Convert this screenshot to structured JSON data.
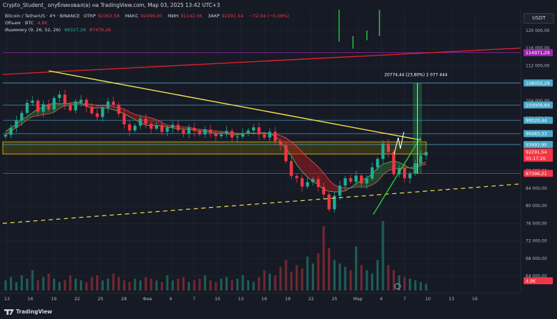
{
  "header": {
    "publisher": "Crypto_Student_ опубликовал(а) на TradingView.com, Мар 03, 2025 13:42 UTC+3"
  },
  "legend": {
    "symbol": "Bitcoin / TetherUS · 4Ч · BINANCE",
    "ohlc": [
      {
        "label": "ОТКР",
        "value": "92363,58"
      },
      {
        "label": "МАКС",
        "value": "92499,00"
      },
      {
        "label": "МИН",
        "value": "91142,06"
      },
      {
        "label": "ЗАКР",
        "value": "92291,54"
      }
    ],
    "change": "−72,04 (−0,08%)",
    "volume_label": "Объем · BTC",
    "volume_value": "4,9K",
    "ichimoku_label": "Ишимоку (9, 26, 52, 26)",
    "ichimoku_a": "88327,28",
    "ichimoku_b": "87479,26"
  },
  "currency": "USDT",
  "measure_label": "20774,44 (23,80%) 2 077 444",
  "brand": "TradingView",
  "colors": {
    "background": "#161a25",
    "up": "#22ab94",
    "down": "#f23645",
    "trendline": "#f7e64b",
    "channel": "#e0202a",
    "levels": "#4aa8c8",
    "support_zone": "#f0c000",
    "measure": "#1aa34a",
    "purple": "#9c27b0"
  },
  "chart_data": {
    "type": "candlestick",
    "instrument": "BTC/USDT",
    "timeframe": "4H",
    "x_ticks": [
      "13",
      "16",
      "19",
      "22",
      "25",
      "28",
      "Фев",
      "4",
      "7",
      "10",
      "13",
      "16",
      "19",
      "22",
      "25",
      "Мар",
      "4",
      "7",
      "10",
      "13",
      "16"
    ],
    "y_ticks": [
      120000,
      116000,
      112000,
      108000,
      104000,
      100000,
      96000,
      92000,
      88000,
      84000,
      80000,
      76000,
      72000,
      68000,
      64000
    ],
    "y_tick_labels": [
      "120 000,00",
      "116 000,00",
      "112 000,00",
      "108 000,00",
      "104 000,00",
      "100 000,00",
      "96 000,00",
      "92 000,00",
      "88 000,00",
      "84 000,00",
      "80 000,00",
      "76 000,00",
      "72 000,00",
      "68 000,00",
      "64 000,00"
    ],
    "ylim": [
      63000,
      123000
    ],
    "price_labels": [
      {
        "value": 114971.29,
        "label": "114971,29",
        "color": "#9c27b0"
      },
      {
        "value": 108050.29,
        "label": "108050,29",
        "color": "#4aa8c8"
      },
      {
        "value": 103009.64,
        "label": "103009,64",
        "color": "#4aa8c8"
      },
      {
        "value": 99520.44,
        "label": "99520,44",
        "color": "#4aa8c8"
      },
      {
        "value": 96483.33,
        "label": "96483,33",
        "color": "#4aa8c8"
      },
      {
        "value": 93993.9,
        "label": "93993,90",
        "color": "#4aa8c8"
      },
      {
        "value": 92291.54,
        "label": "92291,54",
        "color": "#f23645"
      },
      {
        "value": 91000,
        "label": "01:17:20",
        "color": "#f23645"
      },
      {
        "value": 87396.21,
        "label": "87396,21",
        "color": "#f23645"
      },
      {
        "value": 63000,
        "label": "4,9K",
        "color": "#f23645"
      }
    ],
    "horizontal_levels": [
      114971.29,
      108050.29,
      103009.64,
      99520.44,
      96483.33,
      93993.9,
      87396.21
    ],
    "support_zone": [
      91800,
      94600
    ],
    "descending_trendline": [
      {
        "x": "19",
        "y": 110800
      },
      {
        "x": "4",
        "y": 95000
      }
    ],
    "ascending_channel_top": [
      {
        "x": "13",
        "y": 110000
      },
      {
        "x": "16",
        "y": 116000
      }
    ],
    "rising_support_dashed": [
      {
        "x": "13",
        "y": 76000
      },
      {
        "x": "16",
        "y": 85000
      }
    ],
    "rising_trendline": [
      {
        "x": "Мар",
        "y": 78000
      },
      {
        "x": "4",
        "y": 95600
      }
    ],
    "measure": {
      "from": 87300,
      "to": 108050,
      "change": "20774,44 (23,80%)"
    },
    "price_path": [
      96200,
      97800,
      99500,
      101200,
      103500,
      104000,
      101500,
      103200,
      102000,
      104600,
      105400,
      103200,
      101800,
      103600,
      104200,
      102600,
      101100,
      100300,
      102400,
      103800,
      103100,
      101000,
      98600,
      97200,
      98300,
      99900,
      98700,
      97600,
      98400,
      96900,
      97900,
      98500,
      97300,
      96400,
      97800,
      97100,
      96300,
      97400,
      96600,
      95900,
      96300,
      97100,
      95600,
      95800,
      96600,
      97200,
      97900,
      96300,
      95600,
      96900,
      94800,
      93800,
      90200,
      86800,
      86300,
      84400,
      85400,
      86100,
      84300,
      82600,
      79200,
      82300,
      84600,
      86300,
      85500,
      86900,
      85100,
      86200,
      88800,
      90700,
      94200,
      92300,
      87200,
      88600,
      86300,
      87400,
      89700,
      91500,
      92291
    ],
    "volume": [
      6,
      8,
      5,
      9,
      7,
      12,
      6,
      8,
      10,
      7,
      5,
      6,
      9,
      7,
      6,
      5,
      8,
      9,
      6,
      7,
      10,
      8,
      6,
      5,
      7,
      6,
      8,
      7,
      6,
      5,
      9,
      6,
      7,
      8,
      5,
      6,
      7,
      9,
      6,
      5,
      7,
      8,
      6,
      7,
      9,
      6,
      5,
      8,
      12,
      10,
      9,
      14,
      18,
      11,
      15,
      13,
      20,
      16,
      22,
      38,
      25,
      18,
      16,
      14,
      12,
      26,
      15,
      12,
      10,
      18,
      41,
      15,
      12,
      9,
      8,
      7,
      6,
      5,
      4
    ]
  }
}
